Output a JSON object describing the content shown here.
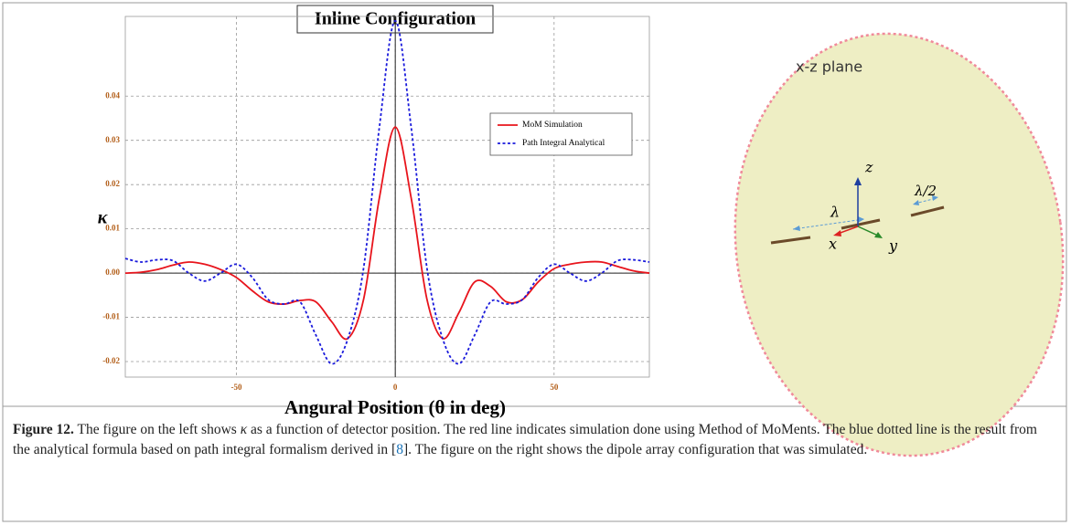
{
  "chart_data": {
    "type": "line",
    "title": "Inline Configuration",
    "x_label": "Angural Position (θ in deg)",
    "y_label": "κ",
    "x": [
      -85,
      -80,
      -75,
      -70,
      -65,
      -60,
      -55,
      -50,
      -45,
      -40,
      -35,
      -30,
      -25,
      -20,
      -15,
      -10,
      -5,
      0,
      5,
      10,
      15,
      20,
      25,
      30,
      35,
      40,
      45,
      50,
      55,
      60,
      65,
      70,
      75,
      80
    ],
    "series": [
      {
        "name": "MoM Simulation",
        "color": "#e8141c",
        "dash": false,
        "values": [
          0.0,
          0.0002,
          0.0008,
          0.0018,
          0.0025,
          0.002,
          0.0008,
          -0.001,
          -0.004,
          -0.0065,
          -0.007,
          -0.0062,
          -0.0065,
          -0.011,
          -0.0148,
          -0.006,
          0.017,
          0.033,
          0.017,
          -0.006,
          -0.0148,
          -0.009,
          -0.002,
          -0.003,
          -0.0065,
          -0.006,
          -0.002,
          0.001,
          0.002,
          0.0025,
          0.0025,
          0.0015,
          0.0005,
          0.0
        ]
      },
      {
        "name": "Path Integral Analytical",
        "color": "#1a1adc",
        "dash": true,
        "values": [
          0.0033,
          0.0025,
          0.003,
          0.0028,
          0.0,
          -0.0018,
          0.0,
          0.002,
          -0.001,
          -0.006,
          -0.007,
          -0.0065,
          -0.014,
          -0.0205,
          -0.015,
          0.001,
          0.033,
          0.057,
          0.033,
          0.001,
          -0.015,
          -0.0205,
          -0.014,
          -0.0065,
          -0.007,
          -0.006,
          -0.001,
          0.002,
          0.0,
          -0.0018,
          0.0,
          0.0028,
          0.003,
          0.0025
        ]
      }
    ],
    "xlim": [
      -85,
      80
    ],
    "ylim": [
      -0.0235,
      0.058
    ],
    "xticks": [
      -50,
      0,
      50
    ],
    "yticks": [
      -0.02,
      -0.01,
      {
        "value": 0,
        "label": "0.00"
      },
      0.01,
      0.02,
      0.03,
      0.04
    ],
    "grid": true,
    "legend": "upper right"
  },
  "diagram": {
    "plane_label": "x-z plane",
    "axis_z": "z",
    "axis_x": "x",
    "axis_y": "y",
    "lambda": "λ",
    "half_lambda": "λ/2"
  },
  "caption": {
    "label": "Figure 12.",
    "text_before": " The figure on the left shows ",
    "kappa": "κ",
    "text_middle": " as a function of detector position. The red line indicates simulation done using Method of MoMents. The blue dotted line is the result from the analytical formula based on path integral formalism derived in [",
    "ref": "8",
    "text_after": "]. The figure on the right shows the dipole array configuration that was simulated."
  }
}
